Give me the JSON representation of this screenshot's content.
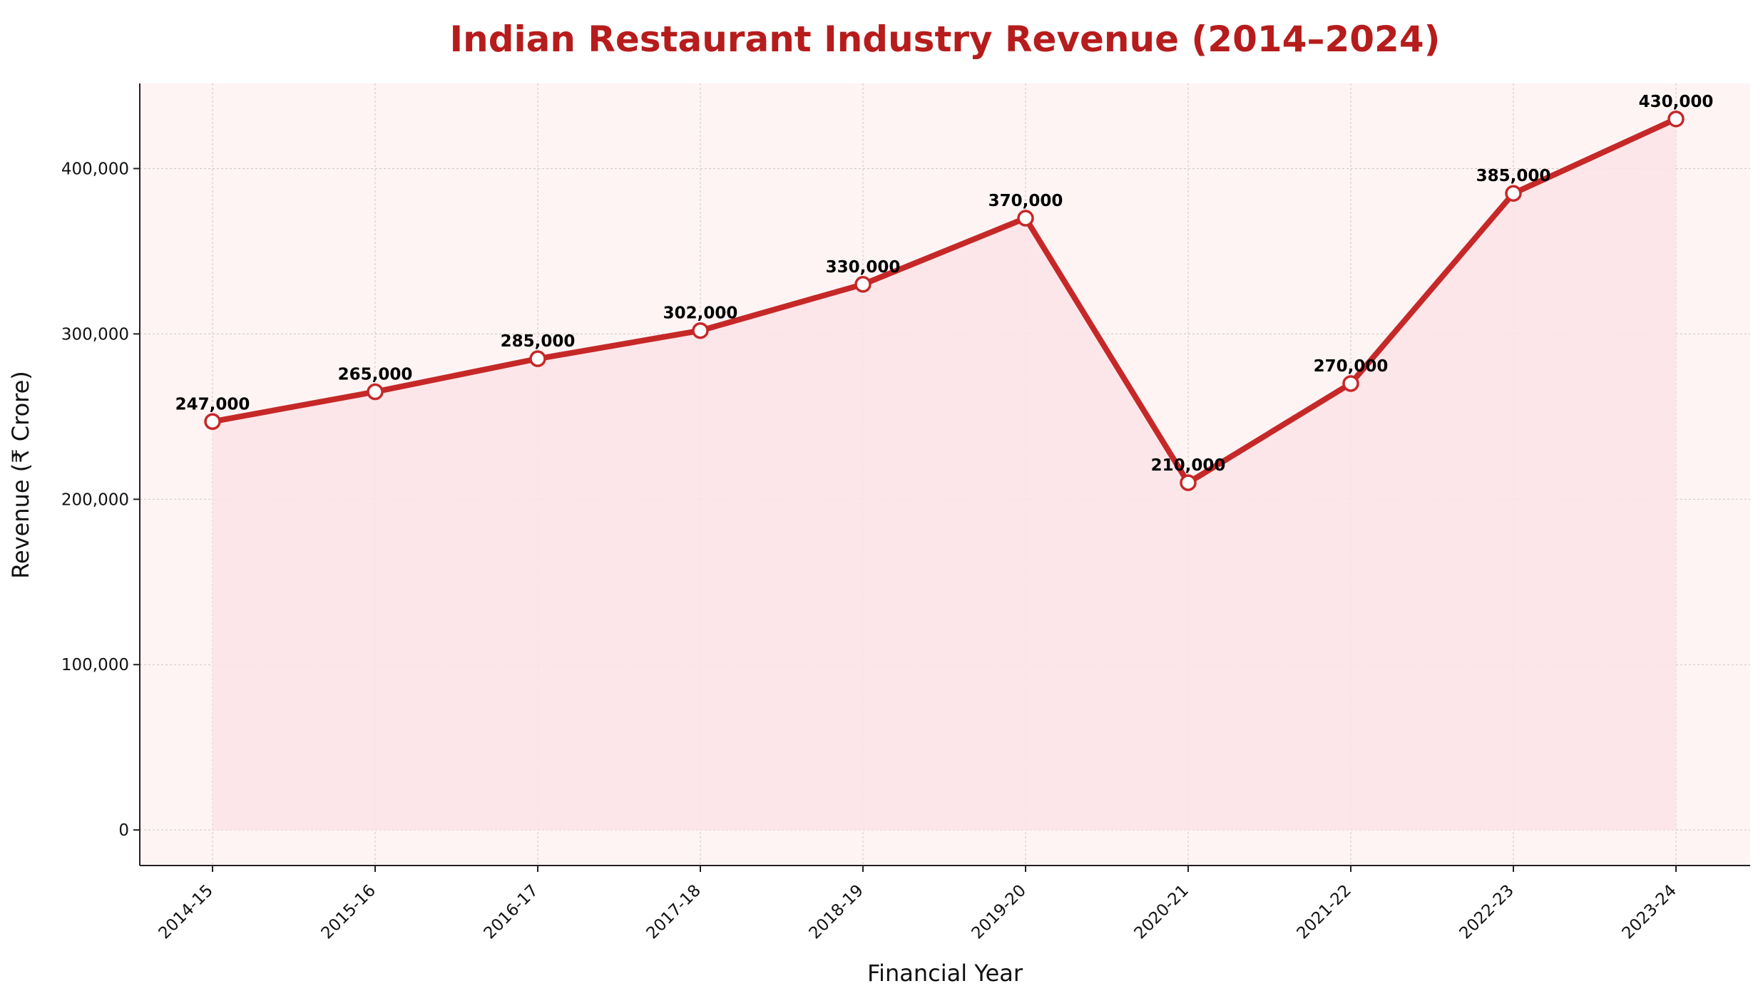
{
  "chart_data": {
    "type": "line",
    "title": "Indian Restaurant Industry Revenue (2014–2024)",
    "xlabel": "Financial Year",
    "ylabel": "Revenue (₹ Crore)",
    "categories": [
      "2014-15",
      "2015-16",
      "2016-17",
      "2017-18",
      "2018-19",
      "2019-20",
      "2020-21",
      "2021-22",
      "2022-23",
      "2023-24"
    ],
    "series": [
      {
        "name": "Revenue",
        "values": [
          247000,
          265000,
          285000,
          302000,
          330000,
          370000,
          210000,
          270000,
          385000,
          430000
        ],
        "data_labels": [
          "247,000",
          "265,000",
          "285,000",
          "302,000",
          "330,000",
          "370,000",
          "210,000",
          "270,000",
          "385,000",
          "430,000"
        ]
      }
    ],
    "yticks": [
      0,
      100000,
      200000,
      300000,
      400000
    ],
    "ytick_labels": [
      "0",
      "100,000",
      "200,000",
      "300,000",
      "400,000"
    ],
    "ylim": [
      -21500,
      451500
    ],
    "grid": true,
    "fill_under_line": true,
    "colors": {
      "line": "#c62828",
      "fill": "#fde3e6",
      "plot_background": "#fff4f4",
      "marker_fill": "#ffffff",
      "grid": "#cfc4c4",
      "title": "#b71c1c"
    }
  }
}
